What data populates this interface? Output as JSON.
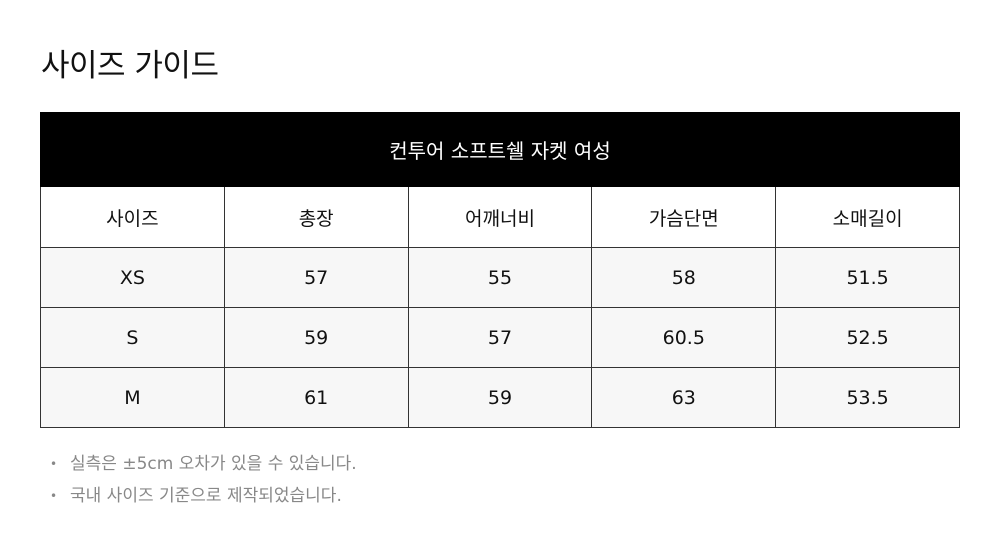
{
  "page": {
    "title": "사이즈 가이드"
  },
  "table": {
    "caption": "컨투어 소프트쉘 자켓 여성",
    "headers": [
      "사이즈",
      "총장",
      "어깨너비",
      "가슴단면",
      "소매길이"
    ],
    "rows": [
      [
        "XS",
        "57",
        "55",
        "58",
        "51.5"
      ],
      [
        "S",
        "59",
        "57",
        "60.5",
        "52.5"
      ],
      [
        "M",
        "61",
        "59",
        "63",
        "53.5"
      ]
    ]
  },
  "notes": [
    "실측은 ±5cm 오차가 있을 수 있습니다.",
    "국내 사이즈 기준으로 제작되었습니다."
  ],
  "colors": {
    "caption_bg": "#000000",
    "row_bg": "#f7f7f7",
    "note_text": "#888888"
  }
}
